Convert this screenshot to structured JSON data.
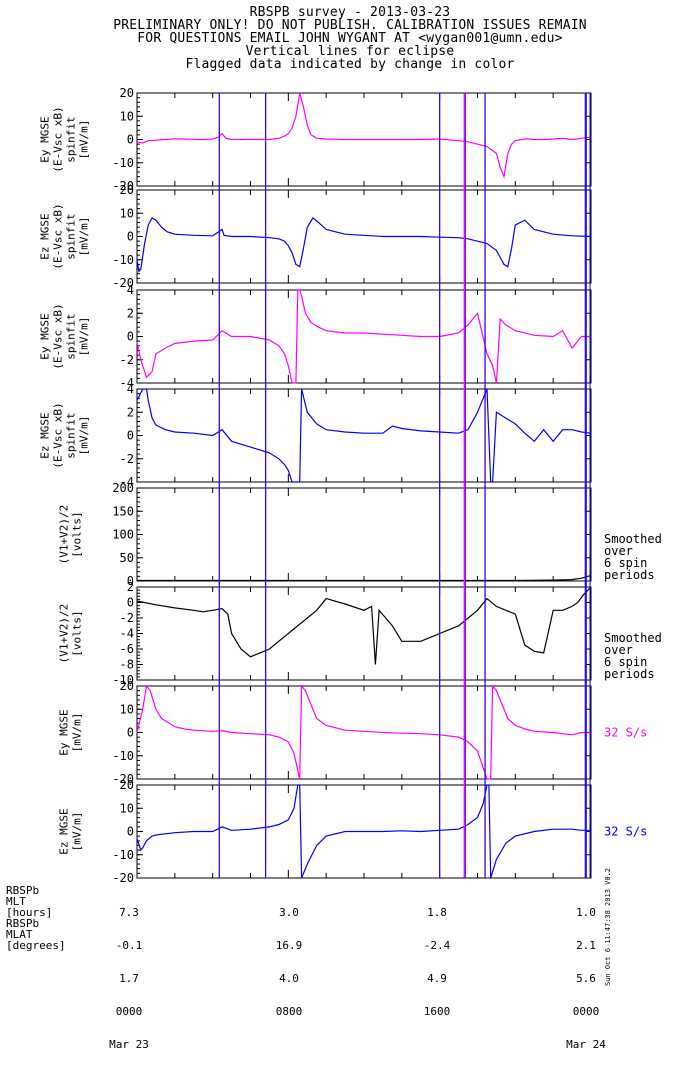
{
  "header": {
    "lines": [
      "RBSPB survey - 2013-03-23",
      "PRELIMINARY ONLY! DO NOT PUBLISH. CALIBRATION ISSUES REMAIN",
      "FOR QUESTIONS EMAIL JOHN WYGANT AT <wygan001@umn.edu>",
      "Vertical lines for eclipse",
      "Flagged data indicated by change in color"
    ]
  },
  "colors": {
    "magenta": "#ff00ff",
    "blue": "#0000ff",
    "black": "#000000",
    "eclipse_line": "#3a00ff"
  },
  "chart_data": [
    {
      "type": "line",
      "panel": 1,
      "ylabel_lines": [
        "Ey MGSE",
        "(E-Vsc xB)",
        "spinfit",
        "[mV/m]"
      ],
      "ylim": [
        -20,
        20
      ],
      "yticks": [
        20,
        10,
        0,
        -10,
        -20
      ],
      "color": "magenta",
      "x_hours": [
        0,
        0.3,
        0.6,
        1,
        1.5,
        2,
        2.5,
        3,
        3.5,
        4,
        4.3,
        4.5,
        4.7,
        5,
        5.5,
        6,
        6.5,
        7,
        7.5,
        7.8,
        8,
        8.2,
        8.4,
        8.6,
        8.8,
        9,
        9.2,
        9.5,
        10,
        11,
        12,
        13,
        14,
        15,
        16,
        17,
        17.5,
        18,
        18.5,
        19,
        19.2,
        19.4,
        19.6,
        19.8,
        20,
        20.3,
        20.6,
        21,
        21.5,
        22,
        22.5,
        23,
        23.5,
        24
      ],
      "y": [
        -1,
        -1.5,
        -0.5,
        -0.3,
        0,
        0.3,
        0.2,
        0.1,
        0,
        0.2,
        1,
        2.5,
        0.5,
        0,
        0,
        0.1,
        0,
        0,
        0.5,
        1.5,
        2.5,
        5,
        10,
        20,
        14,
        6,
        2,
        0.5,
        0.2,
        0,
        0,
        0,
        0,
        0,
        0.2,
        -0.5,
        -1,
        -2,
        -3,
        -6,
        -12,
        -16,
        -6,
        -2,
        -0.5,
        0,
        0.3,
        0,
        0,
        0.2,
        0.5,
        0,
        0.5,
        1
      ]
    },
    {
      "type": "line",
      "panel": 2,
      "ylabel_lines": [
        "Ez MGSE",
        "(E-Vsc xB)",
        "spinfit",
        "[mV/m]"
      ],
      "ylim": [
        -20,
        20
      ],
      "yticks": [
        20,
        10,
        0,
        -10,
        -20
      ],
      "color": "blue",
      "x_hours": [
        0,
        0.1,
        0.2,
        0.4,
        0.6,
        0.8,
        1,
        1.3,
        1.6,
        2,
        3,
        4,
        4.5,
        4.6,
        5,
        6,
        7,
        7.5,
        7.8,
        8,
        8.2,
        8.4,
        8.6,
        8.8,
        9,
        9.3,
        9.6,
        10,
        11,
        12,
        13,
        14,
        15,
        16,
        17,
        17.5,
        18,
        18.5,
        19,
        19.2,
        19.4,
        19.6,
        19.8,
        20,
        20.5,
        21,
        22,
        23,
        24
      ],
      "y": [
        -10,
        -15,
        -14,
        -3,
        5,
        8,
        7,
        4,
        2,
        1,
        0.5,
        0.3,
        3,
        0.5,
        0,
        0,
        -0.5,
        -1,
        -2,
        -4,
        -7,
        -12,
        -13,
        -5,
        4,
        8,
        6,
        3,
        1,
        0.5,
        0,
        0,
        0,
        -0.3,
        -0.5,
        -1,
        -2,
        -3,
        -6,
        -9,
        -12,
        -13,
        -5,
        5,
        7,
        3,
        1,
        0.3,
        0
      ]
    },
    {
      "type": "line",
      "panel": 3,
      "ylabel_lines": [
        "Ey MGSE",
        "(E-Vsc xB)",
        "spinfit",
        "[mV/m]"
      ],
      "ylim": [
        -4,
        4
      ],
      "yticks": [
        4,
        2,
        0,
        -2,
        -4
      ],
      "color": "magenta",
      "x_hours": [
        0,
        0.2,
        0.5,
        0.8,
        1,
        1.5,
        2,
        3,
        4,
        4.5,
        5,
        6,
        7,
        7.5,
        7.8,
        8,
        8.2,
        8.4,
        8.5,
        8.6,
        8.7,
        8.9,
        9.2,
        9.6,
        10,
        11,
        12,
        13,
        14,
        15,
        16,
        17,
        17.5,
        18,
        18.5,
        18.8,
        19,
        19.2,
        19.5,
        20,
        21,
        22,
        22.5,
        23,
        23.5,
        24
      ],
      "y": [
        -0.5,
        -2,
        -3.5,
        -3,
        -1.5,
        -1,
        -0.6,
        -0.4,
        -0.3,
        0.5,
        0,
        0,
        -0.3,
        -0.8,
        -1.5,
        -2.5,
        -4,
        -4,
        4,
        4,
        3.5,
        2,
        1.2,
        0.8,
        0.5,
        0.3,
        0.3,
        0.2,
        0.1,
        0,
        0,
        0.3,
        1,
        2,
        -1.5,
        -2.5,
        -4,
        1.5,
        1,
        0.5,
        0.1,
        0,
        0.5,
        -1,
        0,
        0
      ]
    },
    {
      "type": "line",
      "panel": 4,
      "ylabel_lines": [
        "Ez MGSE",
        "(E-Vsc xB)",
        "spinfit",
        "[mV/m]"
      ],
      "ylim": [
        -4,
        4
      ],
      "yticks": [
        4,
        2,
        0,
        -2,
        -4
      ],
      "color": "blue",
      "x_hours": [
        0,
        0.3,
        0.4,
        0.5,
        0.6,
        0.8,
        1,
        1.5,
        2,
        3,
        4,
        4.5,
        5,
        6,
        7,
        7.5,
        7.8,
        8,
        8.2,
        8.4,
        8.6,
        8.7,
        9,
        9.5,
        10,
        11,
        12,
        13,
        13.5,
        14,
        15,
        16,
        17,
        17.5,
        18,
        18.5,
        18.7,
        18.8,
        19,
        19.5,
        20,
        20.5,
        21,
        21.5,
        22,
        22.5,
        23,
        23.5,
        24
      ],
      "y": [
        3,
        4,
        4,
        4,
        3,
        1.5,
        0.9,
        0.5,
        0.3,
        0.2,
        0,
        0.5,
        -0.5,
        -1,
        -1.5,
        -2,
        -2.5,
        -3,
        -4,
        -4,
        -4,
        4,
        2,
        1,
        0.5,
        0.3,
        0.2,
        0.2,
        0.8,
        0.6,
        0.4,
        0.3,
        0.2,
        0.5,
        2,
        4,
        -4,
        -4,
        2,
        1.5,
        1,
        0.2,
        -0.5,
        0.5,
        -0.5,
        0.5,
        0.5,
        0.3,
        0.2
      ]
    },
    {
      "type": "line",
      "panel": 5,
      "ylabel_lines": [
        "(V1+V2)/2",
        "[volts]"
      ],
      "ylim": [
        0,
        200
      ],
      "yticks": [
        200,
        150,
        100,
        50,
        0
      ],
      "color": "black",
      "annotation_lines": [
        "Smoothed",
        "over",
        "6 spin",
        "periods"
      ],
      "x_hours": [
        0,
        2,
        4,
        6,
        8,
        10,
        12,
        14,
        16,
        18,
        20,
        22,
        23,
        23.5,
        24
      ],
      "y": [
        1,
        1,
        1,
        1,
        1,
        1,
        1,
        1,
        1,
        1,
        1,
        2,
        3,
        6,
        12
      ]
    },
    {
      "type": "line",
      "panel": 6,
      "ylabel_lines": [
        "(V1+V2)/2",
        "[volts]"
      ],
      "ylim": [
        -10,
        2
      ],
      "yticks": [
        2,
        0,
        -2,
        -4,
        -6,
        -8,
        -10
      ],
      "color": "black",
      "annotation_lines": [
        "Smoothed",
        "over",
        "6 spin",
        "periods"
      ],
      "x_hours": [
        0,
        1,
        2,
        3,
        3.5,
        4,
        4.5,
        4.8,
        5,
        5.5,
        6,
        6.5,
        7,
        8,
        9,
        9.5,
        10,
        11,
        12,
        12.4,
        12.6,
        12.8,
        13.5,
        14,
        15,
        16,
        17,
        18,
        18.5,
        19,
        19.5,
        20,
        20.5,
        21,
        21.5,
        22,
        22.5,
        23,
        23.3,
        23.6,
        24
      ],
      "y": [
        0.2,
        -0.3,
        -0.7,
        -1,
        -1.2,
        -1,
        -0.8,
        -1.5,
        -4,
        -6,
        -7,
        -6.5,
        -6,
        -4,
        -2,
        -1,
        0.5,
        -0.2,
        -1,
        -0.5,
        -8,
        -1,
        -3,
        -5,
        -5,
        -4,
        -3,
        -1,
        0.5,
        -0.5,
        -1,
        -1.5,
        -5.5,
        -6.3,
        -6.5,
        -1,
        -1,
        -0.5,
        0,
        1,
        2
      ]
    },
    {
      "type": "line",
      "panel": 7,
      "ylabel_lines": [
        "Ey MGSE",
        "[mV/m]"
      ],
      "ylim": [
        -20,
        20
      ],
      "yticks": [
        20,
        10,
        0,
        -10,
        -20
      ],
      "color": "magenta",
      "annotation_lines": [
        "32 S/s"
      ],
      "x_hours": [
        0,
        0.3,
        0.5,
        0.7,
        1,
        1.3,
        1.7,
        2,
        2.5,
        3,
        4,
        4.5,
        5,
        6,
        7,
        7.5,
        8,
        8.3,
        8.6,
        8.7,
        8.9,
        9.2,
        9.5,
        10,
        11,
        12,
        13,
        14,
        15,
        16,
        17,
        17.5,
        18,
        18.5,
        18.7,
        18.8,
        19,
        19.3,
        19.6,
        20,
        20.5,
        21,
        22,
        23,
        23.5,
        24
      ],
      "y": [
        0,
        10,
        20,
        18,
        10,
        6,
        4,
        2.5,
        1.5,
        1,
        0.5,
        0.8,
        0,
        -0.5,
        -1,
        -2,
        -4,
        -9,
        -20,
        20,
        18,
        12,
        6,
        3,
        1,
        0.5,
        0,
        -0.3,
        -0.5,
        -1,
        -2,
        -4,
        -8,
        -20,
        -20,
        20,
        18,
        12,
        6,
        3,
        1.5,
        0.5,
        0,
        -1,
        0,
        0
      ]
    },
    {
      "type": "line",
      "panel": 8,
      "ylabel_lines": [
        "Ez MGSE",
        "[mV/m]"
      ],
      "ylim": [
        -20,
        20
      ],
      "yticks": [
        20,
        10,
        0,
        -10,
        -20
      ],
      "color": "blue",
      "annotation_lines": [
        "32 S/s"
      ],
      "x_hours": [
        0,
        0.2,
        0.3,
        0.5,
        0.8,
        1,
        1.5,
        2,
        3,
        4,
        4.5,
        5,
        6,
        7,
        7.5,
        8,
        8.3,
        8.5,
        8.6,
        8.7,
        9,
        9.5,
        10,
        11,
        12,
        13,
        14,
        15,
        16,
        17,
        17.5,
        18,
        18.3,
        18.5,
        18.6,
        18.7,
        19,
        19.5,
        20,
        21,
        22,
        23,
        23.5,
        24
      ],
      "y": [
        -3,
        -8,
        -7,
        -4,
        -2,
        -1.5,
        -1,
        -0.5,
        0,
        0,
        2,
        0.5,
        1,
        2,
        3,
        5,
        10,
        20,
        20,
        -20,
        -14,
        -6,
        -2,
        0,
        0,
        0,
        0.3,
        0,
        0.5,
        1,
        3,
        6,
        12,
        20,
        20,
        -20,
        -12,
        -5,
        -2,
        0,
        1,
        1,
        0.5,
        0.5
      ]
    }
  ],
  "eclipse_lines_hours": [
    4.35,
    6.8,
    16.0,
    17.35,
    18.4,
    23.7
  ],
  "flag_lines_hours": [
    17.3
  ],
  "right_edge_lines_hours": [
    23.75,
    23.95
  ],
  "footer": {
    "row_labels": [
      "RBSPb",
      "MLT",
      "[hours]",
      "RBSPb",
      "MLAT",
      "[degrees]"
    ],
    "columns": [
      {
        "lines": [
          "7.3",
          "-0.1",
          "1.7",
          "0000",
          "Mar 23"
        ]
      },
      {
        "lines": [
          "3.0",
          "16.9",
          "4.0",
          "0800",
          ""
        ]
      },
      {
        "lines": [
          "1.8",
          "-2.4",
          "4.9",
          "1600",
          ""
        ]
      },
      {
        "lines": [
          "1.0",
          "2.1",
          "5.6",
          "0000",
          "Mar 24"
        ]
      }
    ]
  },
  "stamp_text": "Sun Oct  6 11:47:38 2013 V0.2"
}
